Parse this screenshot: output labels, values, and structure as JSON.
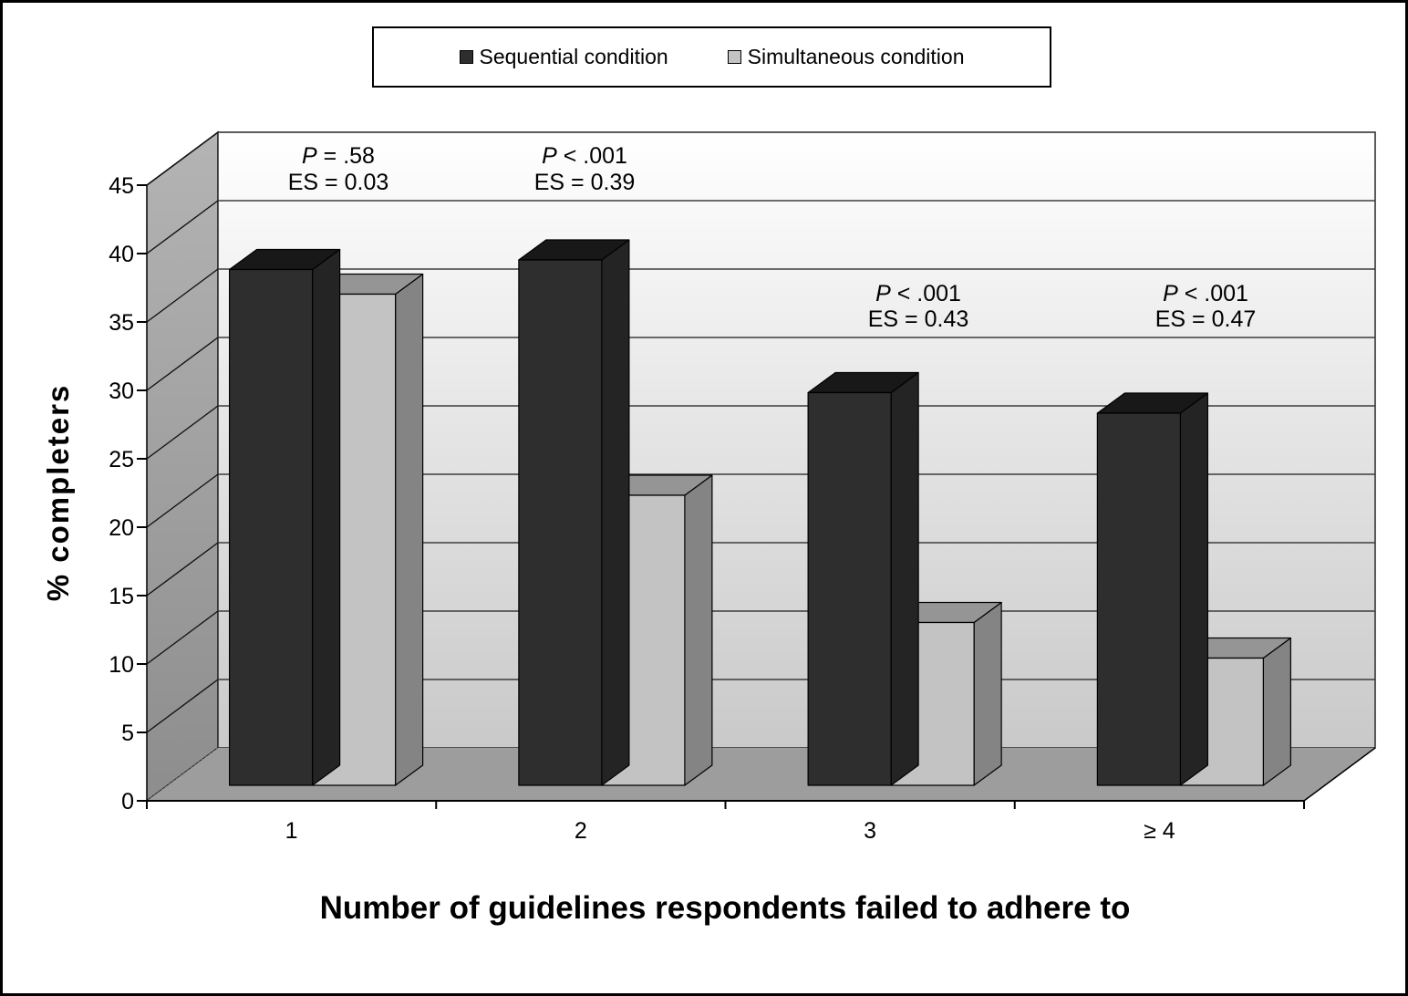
{
  "figure": {
    "background": "#ffffff",
    "border_color": "#000000"
  },
  "legend": {
    "items": [
      {
        "label": "Sequential condition",
        "swatch_color": "#2e2e2e"
      },
      {
        "label": "Simultaneous condition",
        "swatch_color": "#c3c3c3"
      }
    ]
  },
  "chart_data": {
    "type": "bar",
    "style": "3d-clustered-column",
    "title": "",
    "xlabel": "Number of guidelines respondents failed to adhere to",
    "ylabel": "% completers",
    "categories": [
      "1",
      "2",
      "3",
      "≥ 4"
    ],
    "series": [
      {
        "name": "Sequential condition",
        "values": [
          37.7,
          38.4,
          28.7,
          27.2
        ],
        "face_colors": {
          "front": "#2e2e2e",
          "top": "#181818",
          "side": "#242424"
        }
      },
      {
        "name": "Simultaneous condition",
        "values": [
          35.9,
          21.2,
          11.9,
          9.3
        ],
        "face_colors": {
          "front": "#c3c3c3",
          "top": "#959595",
          "side": "#848484"
        }
      }
    ],
    "ylim": [
      0,
      45
    ],
    "yticks": [
      0,
      5,
      10,
      15,
      20,
      25,
      30,
      35,
      40,
      45
    ],
    "grid": true,
    "legend_position": "top-center",
    "annotations": [
      {
        "category_index": 0,
        "lines": [
          "P = .58",
          "ES = 0.03"
        ],
        "level": "high"
      },
      {
        "category_index": 1,
        "lines": [
          "P < .001",
          "ES = 0.39"
        ],
        "level": "high"
      },
      {
        "category_index": 2,
        "lines": [
          "P < .001",
          "ES = 0.43"
        ],
        "level": "low"
      },
      {
        "category_index": 3,
        "lines": [
          "P < .001",
          "ES = 0.47"
        ],
        "level": "low"
      }
    ],
    "surface_colors": {
      "back_wall_top": "#ffffff",
      "back_wall_bottom": "#c9c9c9",
      "left_wall_top": "#b4b4b4",
      "left_wall_bottom": "#8d8d8d",
      "floor": "#9d9d9d",
      "gridline": "#3c3c3c",
      "axis": "#000000"
    }
  }
}
